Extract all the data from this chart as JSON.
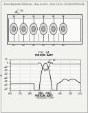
{
  "bg_color": "#f2f2ee",
  "header_text": "Patent Application Publication    Aug. 11, 2011   Sheet 1 of 23   US 2011/0193656 A1",
  "header_fontsize": 2.0,
  "fig1a_label": "FIG. 1A",
  "fig1b_label": "FIG. 1B",
  "prior_art_label": "PRIOR ART",
  "diagram_bg": "#f8f8f6",
  "plot_bg": "#f8f8f6",
  "line_color_dark": "#333333",
  "line_color_mid": "#666666",
  "grid_color": "#cccccc",
  "border_color": "#555555"
}
